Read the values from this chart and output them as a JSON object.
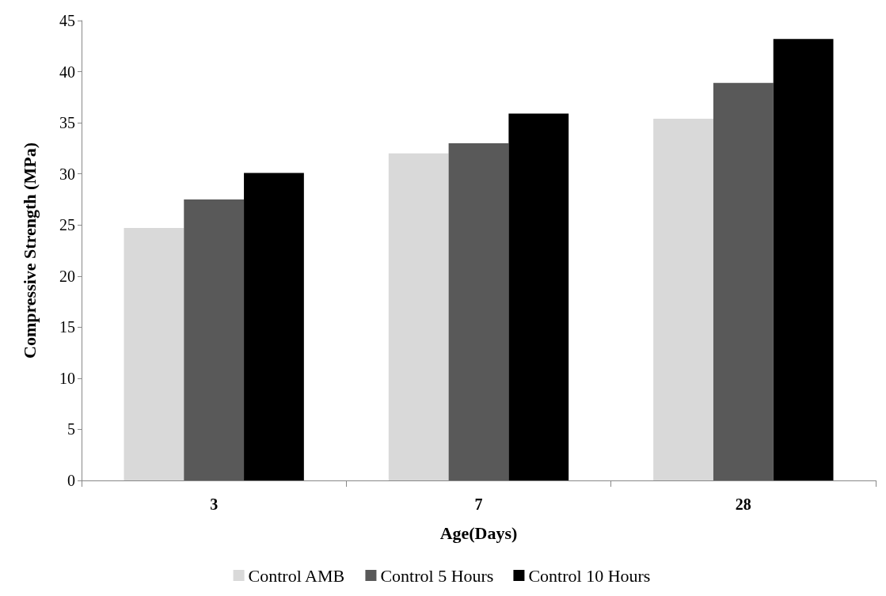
{
  "chart_data": {
    "type": "bar",
    "xlabel": "Age(Days)",
    "ylabel": "Compressive Strength (MPa)",
    "categories": [
      "3",
      "7",
      "28"
    ],
    "series": [
      {
        "name": "Control AMB",
        "color": "#d9d9d9",
        "values": [
          24.7,
          32.0,
          35.4
        ]
      },
      {
        "name": "Control 5 Hours",
        "color": "#595959",
        "values": [
          27.5,
          33.0,
          38.9
        ]
      },
      {
        "name": "Control 10 Hours",
        "color": "#000000",
        "values": [
          30.1,
          35.9,
          43.2
        ]
      }
    ],
    "ylim": [
      0,
      45
    ],
    "yticks": [
      0,
      5,
      10,
      15,
      20,
      25,
      30,
      35,
      40,
      45
    ],
    "grid": false,
    "legend": "bottom"
  }
}
